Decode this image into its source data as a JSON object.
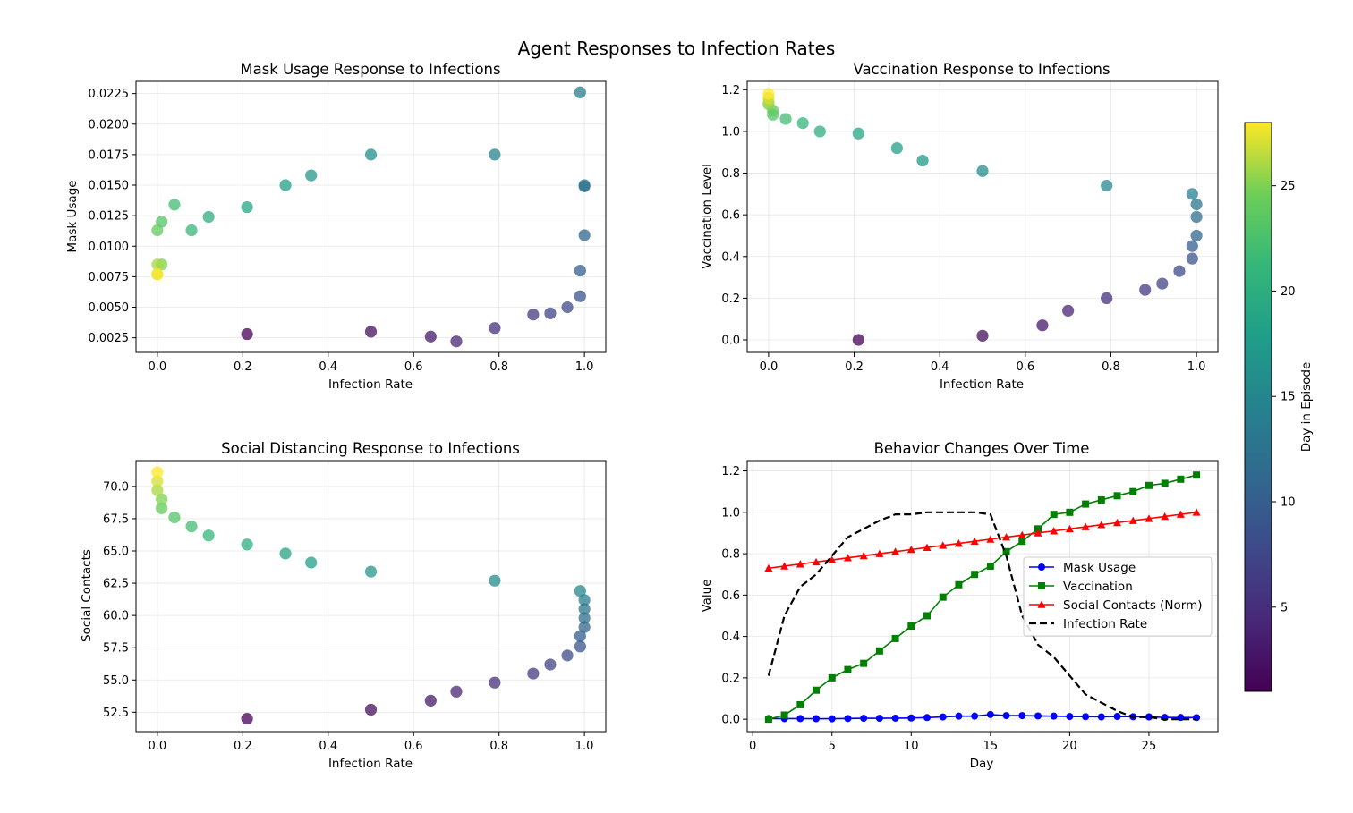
{
  "figure": {
    "title": "Agent Responses to Infection Rates",
    "colorbar": {
      "label": "Day in Episode",
      "range": [
        1,
        28
      ],
      "ticks": [
        5,
        10,
        15,
        20,
        25
      ],
      "colormap": "viridis"
    }
  },
  "chart_data": [
    {
      "id": "mask",
      "type": "scatter",
      "title": "Mask Usage Response to Infections",
      "xlabel": "Infection Rate",
      "ylabel": "Mask Usage",
      "xlim": [
        -0.05,
        1.05
      ],
      "ylim": [
        0.0013,
        0.0235
      ],
      "xticks": [
        0.0,
        0.2,
        0.4,
        0.6,
        0.8,
        1.0
      ],
      "yticks": [
        0.0025,
        0.005,
        0.0075,
        0.01,
        0.0125,
        0.015,
        0.0175,
        0.02,
        0.0225
      ],
      "grid": true,
      "days": [
        1,
        2,
        3,
        4,
        5,
        6,
        7,
        8,
        9,
        10,
        11,
        12,
        13,
        14,
        15,
        16,
        17,
        18,
        19,
        20,
        21,
        22,
        23,
        24,
        25,
        26,
        27,
        28
      ],
      "x": [
        0.21,
        0.5,
        0.64,
        0.7,
        0.79,
        0.88,
        0.92,
        0.96,
        0.99,
        0.99,
        1.0,
        1.0,
        1.0,
        0.99,
        0.79,
        0.5,
        0.36,
        0.3,
        0.21,
        0.12,
        0.08,
        0.04,
        0.01,
        0.0,
        0.01,
        0.0,
        0.0,
        0.0
      ],
      "y": [
        0.0028,
        0.003,
        0.0026,
        0.0022,
        0.0033,
        0.0044,
        0.0045,
        0.005,
        0.0059,
        0.008,
        0.0109,
        0.0149,
        0.015,
        0.0226,
        0.0175,
        0.0175,
        0.0158,
        0.015,
        0.0132,
        0.0124,
        0.0113,
        0.0134,
        0.012,
        0.0113,
        0.0085,
        0.0085,
        0.0077,
        0.0077
      ]
    },
    {
      "id": "vacc",
      "type": "scatter",
      "title": "Vaccination Response to Infections",
      "xlabel": "Infection Rate",
      "ylabel": "Vaccination Level",
      "xlim": [
        -0.05,
        1.05
      ],
      "ylim": [
        -0.06,
        1.24
      ],
      "xticks": [
        0.0,
        0.2,
        0.4,
        0.6,
        0.8,
        1.0
      ],
      "yticks": [
        0.0,
        0.2,
        0.4,
        0.6,
        0.8,
        1.0,
        1.2
      ],
      "grid": true,
      "days": [
        1,
        2,
        3,
        4,
        5,
        6,
        7,
        8,
        9,
        10,
        11,
        12,
        13,
        14,
        15,
        16,
        17,
        18,
        19,
        20,
        21,
        22,
        23,
        24,
        25,
        26,
        27,
        28
      ],
      "x": [
        0.21,
        0.5,
        0.64,
        0.7,
        0.79,
        0.88,
        0.92,
        0.96,
        0.99,
        0.99,
        1.0,
        1.0,
        1.0,
        0.99,
        0.79,
        0.5,
        0.36,
        0.3,
        0.21,
        0.12,
        0.08,
        0.04,
        0.01,
        0.01,
        0.0,
        0.0,
        0.0,
        0.0
      ],
      "y": [
        0.0,
        0.02,
        0.07,
        0.14,
        0.2,
        0.24,
        0.27,
        0.33,
        0.39,
        0.45,
        0.5,
        0.59,
        0.65,
        0.7,
        0.74,
        0.81,
        0.86,
        0.92,
        0.99,
        1.0,
        1.04,
        1.06,
        1.08,
        1.1,
        1.13,
        1.14,
        1.16,
        1.18
      ]
    },
    {
      "id": "social",
      "type": "scatter",
      "title": "Social Distancing Response to Infections",
      "xlabel": "Infection Rate",
      "ylabel": "Social Contacts",
      "xlim": [
        -0.05,
        1.05
      ],
      "ylim": [
        51.0,
        72.0
      ],
      "xticks": [
        0.0,
        0.2,
        0.4,
        0.6,
        0.8,
        1.0
      ],
      "yticks": [
        52.5,
        55.0,
        57.5,
        60.0,
        62.5,
        65.0,
        67.5,
        70.0
      ],
      "grid": true,
      "days": [
        1,
        2,
        3,
        4,
        5,
        6,
        7,
        8,
        9,
        10,
        11,
        12,
        13,
        14,
        15,
        16,
        17,
        18,
        19,
        20,
        21,
        22,
        23,
        24,
        25,
        26,
        27,
        28
      ],
      "x": [
        0.21,
        0.5,
        0.64,
        0.7,
        0.79,
        0.88,
        0.92,
        0.96,
        0.99,
        0.99,
        1.0,
        1.0,
        1.0,
        1.0,
        0.99,
        0.79,
        0.5,
        0.36,
        0.3,
        0.21,
        0.12,
        0.08,
        0.04,
        0.01,
        0.01,
        0.0,
        0.0,
        0.0
      ],
      "y": [
        52.0,
        52.7,
        53.4,
        54.1,
        54.8,
        55.5,
        56.2,
        56.9,
        57.6,
        58.4,
        59.1,
        59.8,
        60.5,
        61.2,
        61.9,
        62.7,
        63.4,
        64.1,
        64.8,
        65.5,
        66.2,
        66.9,
        67.6,
        68.3,
        69.0,
        69.7,
        70.4,
        71.1
      ]
    },
    {
      "id": "time",
      "type": "line",
      "title": "Behavior Changes Over Time",
      "xlabel": "Day",
      "ylabel": "Value",
      "xlim": [
        -0.35,
        29.35
      ],
      "ylim": [
        -0.06,
        1.25
      ],
      "xticks": [
        0,
        5,
        10,
        15,
        20,
        25
      ],
      "yticks": [
        0.0,
        0.2,
        0.4,
        0.6,
        0.8,
        1.0,
        1.2
      ],
      "grid": true,
      "legend": "center-right",
      "x": [
        1,
        2,
        3,
        4,
        5,
        6,
        7,
        8,
        9,
        10,
        11,
        12,
        13,
        14,
        15,
        16,
        17,
        18,
        19,
        20,
        21,
        22,
        23,
        24,
        25,
        26,
        27,
        28
      ],
      "series": [
        {
          "name": "Mask Usage",
          "color": "#0000ff",
          "marker": "circle",
          "dash": "solid",
          "values": [
            0.003,
            0.0028,
            0.003,
            0.0026,
            0.0022,
            0.0033,
            0.0044,
            0.0045,
            0.005,
            0.0059,
            0.008,
            0.0109,
            0.0149,
            0.015,
            0.0226,
            0.0175,
            0.0175,
            0.0158,
            0.015,
            0.0132,
            0.0124,
            0.0113,
            0.0134,
            0.012,
            0.0113,
            0.0085,
            0.0085,
            0.0077
          ]
        },
        {
          "name": "Vaccination",
          "color": "#008000",
          "marker": "square",
          "dash": "solid",
          "values": [
            0.0,
            0.02,
            0.07,
            0.14,
            0.2,
            0.24,
            0.27,
            0.33,
            0.39,
            0.45,
            0.5,
            0.59,
            0.65,
            0.7,
            0.74,
            0.81,
            0.86,
            0.92,
            0.99,
            1.0,
            1.04,
            1.06,
            1.08,
            1.1,
            1.13,
            1.14,
            1.16,
            1.18
          ]
        },
        {
          "name": "Social Contacts (Norm)",
          "color": "#ff0000",
          "marker": "triangle",
          "dash": "solid",
          "values": [
            0.73,
            0.74,
            0.75,
            0.76,
            0.77,
            0.78,
            0.79,
            0.8,
            0.81,
            0.82,
            0.83,
            0.84,
            0.85,
            0.86,
            0.87,
            0.88,
            0.89,
            0.9,
            0.91,
            0.92,
            0.93,
            0.94,
            0.95,
            0.96,
            0.97,
            0.98,
            0.99,
            1.0
          ]
        },
        {
          "name": "Infection Rate",
          "color": "#000000",
          "marker": "none",
          "dash": "dashed",
          "values": [
            0.21,
            0.5,
            0.64,
            0.7,
            0.79,
            0.88,
            0.92,
            0.96,
            0.99,
            0.99,
            1.0,
            1.0,
            1.0,
            1.0,
            0.99,
            0.79,
            0.5,
            0.36,
            0.3,
            0.21,
            0.12,
            0.08,
            0.04,
            0.01,
            0.01,
            0.0,
            0.0,
            0.0
          ]
        }
      ]
    }
  ]
}
